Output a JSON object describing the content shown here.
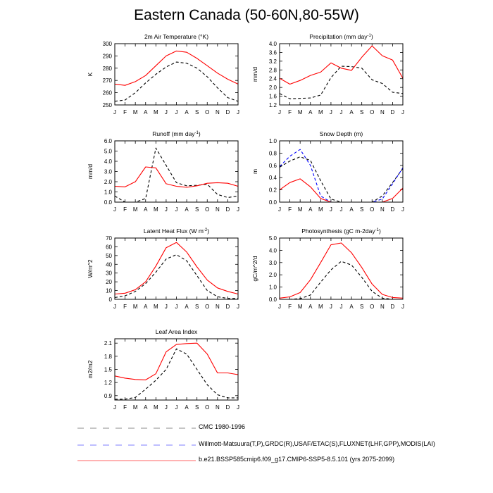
{
  "figure": {
    "title": "Eastern Canada (50-60N,80-55W)"
  },
  "chart_data": [
    {
      "type": "line",
      "title": "2m Air Temperature (°K)",
      "ylabel": "K",
      "categories": [
        "J",
        "F",
        "M",
        "A",
        "M",
        "J",
        "J",
        "A",
        "S",
        "O",
        "N",
        "D",
        "J"
      ],
      "ylim": [
        250,
        300
      ],
      "yticks": [
        250,
        260,
        270,
        280,
        290,
        300
      ],
      "ytick_labels": [
        "250",
        "260",
        "270",
        "280",
        "290",
        "300"
      ],
      "series": [
        {
          "name": "CMC 1980-1996",
          "color": "#000000",
          "dash": "dashed",
          "values": [
            253,
            254,
            260,
            268,
            275,
            281,
            285,
            284,
            280,
            273,
            264,
            256,
            253
          ]
        },
        {
          "name": "b.e21.BSSP585cmip6.f09_g17.CMIP6-SSP5-8.5.101 (yrs 2075-2099)",
          "color": "#ff0000",
          "dash": "solid",
          "values": [
            267,
            266,
            269,
            274,
            282,
            290,
            294,
            293,
            288,
            282,
            276,
            271,
            267
          ]
        }
      ]
    },
    {
      "type": "line",
      "title": "Precipitation (mm day-1)",
      "ylabel": "mm/d",
      "categories": [
        "J",
        "F",
        "M",
        "A",
        "M",
        "J",
        "J",
        "A",
        "S",
        "O",
        "N",
        "D",
        "J"
      ],
      "ylim": [
        1.2,
        4.0
      ],
      "yticks": [
        1.2,
        1.6,
        2.0,
        2.4,
        2.8,
        3.2,
        3.6,
        4.0
      ],
      "ytick_labels": [
        "1.2",
        "1.6",
        "2.0",
        "2.4",
        "2.8",
        "3.2",
        "3.6",
        "4.0"
      ],
      "series": [
        {
          "name": "CMC 1980-1996",
          "color": "#000000",
          "dash": "dashed",
          "values": [
            1.72,
            1.48,
            1.5,
            1.52,
            1.65,
            2.45,
            2.97,
            2.95,
            2.88,
            2.35,
            2.18,
            1.78,
            1.72
          ]
        },
        {
          "name": "b.e21.BSSP585cmip6.f09_g17.CMIP6-SSP5-8.5.101 (yrs 2075-2099)",
          "color": "#ff0000",
          "dash": "solid",
          "values": [
            2.42,
            2.15,
            2.32,
            2.55,
            2.7,
            3.12,
            2.88,
            2.78,
            3.38,
            3.9,
            3.45,
            3.25,
            2.42
          ]
        }
      ]
    },
    {
      "type": "line",
      "title": "Runoff (mm day-1)",
      "ylabel": "mm/d",
      "categories": [
        "J",
        "F",
        "M",
        "A",
        "M",
        "J",
        "J",
        "A",
        "S",
        "O",
        "N",
        "D",
        "J"
      ],
      "ylim": [
        0,
        6
      ],
      "yticks": [
        0,
        1,
        2,
        3,
        4,
        5,
        6
      ],
      "ytick_labels": [
        "0.0",
        "1.0",
        "2.0",
        "3.0",
        "4.0",
        "5.0",
        "6.0"
      ],
      "series": [
        {
          "name": "CMC 1980-1996",
          "color": "#000000",
          "dash": "dashed",
          "values": [
            0.6,
            0.0,
            0.0,
            0.35,
            5.3,
            3.6,
            1.9,
            1.6,
            1.65,
            1.75,
            0.75,
            0.45,
            0.6
          ]
        },
        {
          "name": "b.e21.BSSP585cmip6.f09_g17.CMIP6-SSP5-8.5.101 (yrs 2075-2099)",
          "color": "#ff0000",
          "dash": "solid",
          "values": [
            1.55,
            1.5,
            2.0,
            3.45,
            3.35,
            1.8,
            1.55,
            1.45,
            1.6,
            1.85,
            1.9,
            1.85,
            1.55
          ]
        }
      ]
    },
    {
      "type": "line",
      "title": "Snow Depth (m)",
      "ylabel": "m",
      "categories": [
        "J",
        "F",
        "M",
        "A",
        "M",
        "J",
        "J",
        "A",
        "S",
        "O",
        "N",
        "D",
        "J"
      ],
      "ylim": [
        0,
        1.0
      ],
      "yticks": [
        0,
        0.2,
        0.4,
        0.6,
        0.8,
        1.0
      ],
      "ytick_labels": [
        "0.0",
        "0.2",
        "0.4",
        "0.6",
        "0.8",
        "1.0"
      ],
      "series": [
        {
          "name": "CMC 1980-1996",
          "color": "#000000",
          "dash": "dashed",
          "values": [
            0.57,
            0.67,
            0.74,
            0.68,
            0.35,
            0.05,
            0.0,
            0.0,
            0.0,
            0.0,
            0.1,
            0.32,
            0.55
          ]
        },
        {
          "name": "Willmott-Matsuura(T,P),GRDC(R),USAF/ETAC(S),FLUXNET(LHF,GPP),MODIS(LAI)",
          "color": "#0000ff",
          "dash": "dashed",
          "values": [
            0.58,
            0.75,
            0.86,
            0.6,
            0.1,
            0.0,
            0.0,
            0.0,
            0.0,
            0.0,
            0.05,
            0.3,
            0.56
          ]
        },
        {
          "name": "b.e21.BSSP585cmip6.f09_g17.CMIP6-SSP5-8.5.101 (yrs 2075-2099)",
          "color": "#ff0000",
          "dash": "solid",
          "values": [
            0.2,
            0.32,
            0.38,
            0.25,
            0.06,
            0.0,
            0.0,
            0.0,
            0.0,
            0.0,
            0.0,
            0.06,
            0.23
          ]
        }
      ]
    },
    {
      "type": "line",
      "title": "Latent Heat Flux (W m-2)",
      "ylabel": "W/m^2",
      "categories": [
        "J",
        "F",
        "M",
        "A",
        "M",
        "J",
        "J",
        "A",
        "S",
        "O",
        "N",
        "D",
        "J"
      ],
      "ylim": [
        0,
        70
      ],
      "yticks": [
        0,
        10,
        20,
        30,
        40,
        50,
        60,
        70
      ],
      "ytick_labels": [
        "0",
        "10",
        "20",
        "30",
        "40",
        "50",
        "60",
        "70"
      ],
      "series": [
        {
          "name": "CMC 1980-1996",
          "color": "#000000",
          "dash": "dashed",
          "values": [
            2,
            4,
            9,
            18,
            31,
            46,
            51,
            44,
            27,
            10,
            3,
            1,
            1
          ]
        },
        {
          "name": "b.e21.BSSP585cmip6.f09_g17.CMIP6-SSP5-8.5.101 (yrs 2075-2099)",
          "color": "#ff0000",
          "dash": "solid",
          "values": [
            6,
            7,
            11,
            20,
            38,
            59,
            65,
            54,
            37,
            22,
            13,
            9,
            6
          ]
        }
      ]
    },
    {
      "type": "line",
      "title": "Photosynthesis (gC m-2day-1)",
      "ylabel": "gC/m^2/d",
      "categories": [
        "J",
        "F",
        "M",
        "A",
        "M",
        "J",
        "J",
        "A",
        "S",
        "O",
        "N",
        "D",
        "J"
      ],
      "ylim": [
        0,
        5
      ],
      "yticks": [
        0,
        1,
        2,
        3,
        4,
        5
      ],
      "ytick_labels": [
        "0.0",
        "1.0",
        "2.0",
        "3.0",
        "4.0",
        "5.0"
      ],
      "series": [
        {
          "name": "CMC 1980-1996",
          "color": "#000000",
          "dash": "dashed",
          "values": [
            0.0,
            0.0,
            0.05,
            0.35,
            1.4,
            2.4,
            3.1,
            2.8,
            1.8,
            0.65,
            0.1,
            0.0,
            0.0
          ]
        },
        {
          "name": "b.e21.BSSP585cmip6.f09_g17.CMIP6-SSP5-8.5.101 (yrs 2075-2099)",
          "color": "#ff0000",
          "dash": "solid",
          "values": [
            0.1,
            0.2,
            0.55,
            1.6,
            3.0,
            4.45,
            4.6,
            3.8,
            2.6,
            1.25,
            0.4,
            0.15,
            0.1
          ]
        }
      ]
    },
    {
      "type": "line",
      "title": "Leaf Area Index",
      "ylabel": "m2/m2",
      "categories": [
        "J",
        "F",
        "M",
        "A",
        "M",
        "J",
        "J",
        "A",
        "S",
        "O",
        "N",
        "D",
        "J"
      ],
      "ylim": [
        0.8,
        2.2
      ],
      "yticks": [
        0.9,
        1.2,
        1.5,
        1.8,
        2.1
      ],
      "ytick_labels": [
        "0.9",
        "1.2",
        "1.5",
        "1.8",
        "2.1"
      ],
      "series": [
        {
          "name": "CMC 1980-1996",
          "color": "#000000",
          "dash": "dashed",
          "values": [
            0.82,
            0.82,
            0.86,
            1.05,
            1.25,
            1.5,
            1.97,
            1.85,
            1.5,
            1.15,
            0.92,
            0.85,
            0.85
          ]
        },
        {
          "name": "b.e21.BSSP585cmip6.f09_g17.CMIP6-SSP5-8.5.101 (yrs 2075-2099)",
          "color": "#ff0000",
          "dash": "solid",
          "values": [
            1.35,
            1.3,
            1.27,
            1.26,
            1.4,
            1.9,
            2.07,
            2.09,
            2.1,
            1.85,
            1.42,
            1.42,
            1.38
          ]
        }
      ]
    }
  ],
  "legend": [
    {
      "label": "CMC 1980-1996",
      "color": "#000000",
      "dash": "dashed"
    },
    {
      "label": "Willmott-Matsuura(T,P),GRDC(R),USAF/ETAC(S),FLUXNET(LHF,GPP),MODIS(LAI)",
      "color": "#0000ff",
      "dash": "dashed"
    },
    {
      "label": "b.e21.BSSP585cmip6.f09_g17.CMIP6-SSP5-8.5.101 (yrs 2075-2099)",
      "color": "#ff0000",
      "dash": "solid"
    }
  ]
}
